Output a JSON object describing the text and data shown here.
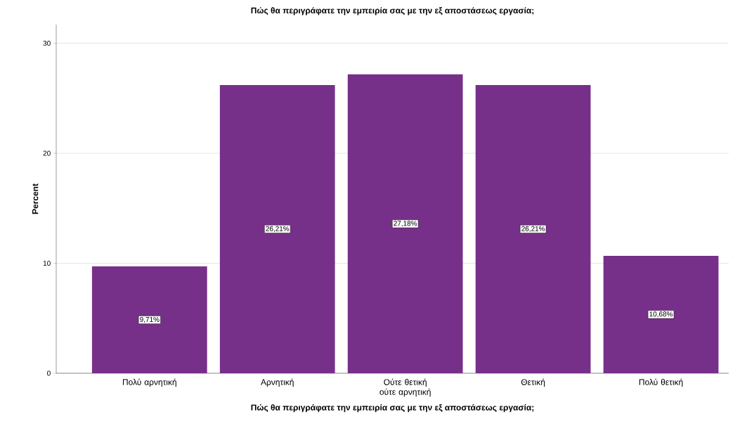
{
  "chart_data": {
    "type": "bar",
    "title": "Πώς θα περιγράφατε την εμπειρία σας με την εξ αποστάσεως εργασία;",
    "xlabel": "Πώς θα περιγράφατε την εμπειρία σας με την εξ αποστάσεως εργασία;",
    "ylabel": "Percent",
    "categories": [
      "Πολύ αρνητική",
      "Αρνητική",
      "Ούτε θετική ούτε αρνητική",
      "Θετική",
      "Πολύ θετική"
    ],
    "values": [
      9.71,
      26.21,
      27.18,
      26.21,
      10.68
    ],
    "value_labels": [
      "9,71%",
      "26,21%",
      "27,18%",
      "26,21%",
      "10,68%"
    ],
    "color": "#763089",
    "ylim": [
      0,
      31.7
    ],
    "yticks": [
      0,
      10,
      20,
      30
    ],
    "grid": "y"
  }
}
